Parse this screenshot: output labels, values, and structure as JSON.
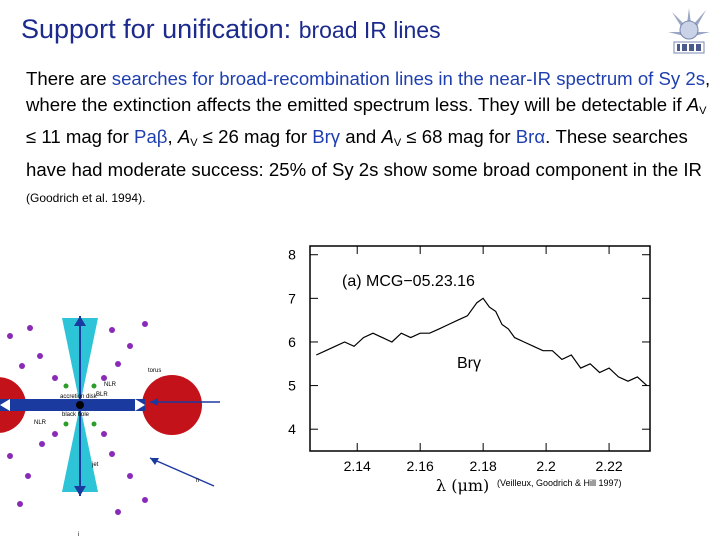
{
  "slide": {
    "title_main": "Support for unification:",
    "title_sub": "broad IR lines"
  },
  "body": {
    "p1": "There are ",
    "p2": "searches for broad-recombination lines in the near-IR spectrum of Sy 2s",
    "p3": ", where the extinction affects the emitted spectrum less. They will be detectable if ",
    "av": "A",
    "v": "V",
    "p4": " ≤ 11 mag for ",
    "pab": "Paβ",
    "p5": ", ",
    "p6": " ≤ 26 mag for ",
    "brg": "Brγ",
    "p7": " and ",
    "p8": " ≤ 68 mag for ",
    "bra": "Brα",
    "p9": ".  These searches have had moderate success: 25% of Sy 2s show some broad component in the IR ",
    "ref": "(Goodrich et al. 1994)."
  },
  "diagram": {
    "labels": {
      "nlr_top": "NLR",
      "blr": "BLR",
      "disk": "accretion disk",
      "bh": "black hole",
      "nlr_bottom": "NLR",
      "jet": "jet",
      "torus": "torus",
      "marker": "n",
      "bottom": "i"
    },
    "colors": {
      "torus": "#c4121a",
      "cone": "#2ec4d8",
      "dots": "#8a2bb8",
      "dots_green": "#2a9d2a",
      "axis": "#1a3aa0"
    }
  },
  "chart_data": {
    "type": "line",
    "title": "",
    "panel_label": "(a) MCG−05.23.16",
    "annotation": "Brγ",
    "xlabel": "λ (μm)",
    "ylabel": "",
    "xlim": [
      2.125,
      2.233
    ],
    "ylim": [
      3.5,
      8.2
    ],
    "xticks": [
      "2.14",
      "2.16",
      "2.18",
      "2.2",
      "2.22"
    ],
    "xtick_values": [
      2.14,
      2.16,
      2.18,
      2.2,
      2.22
    ],
    "yticks": [
      "4",
      "5",
      "6",
      "7",
      "8"
    ],
    "ytick_values": [
      4,
      5,
      6,
      7,
      8
    ],
    "grid": false,
    "series": [
      {
        "x": [
          2.127,
          2.13,
          2.133,
          2.136,
          2.139,
          2.142,
          2.145,
          2.148,
          2.151,
          2.154,
          2.157,
          2.16,
          2.163,
          2.166,
          2.169,
          2.172,
          2.175,
          2.178,
          2.18,
          2.182,
          2.184,
          2.186,
          2.188,
          2.19,
          2.193,
          2.196,
          2.199,
          2.202,
          2.205,
          2.208,
          2.211,
          2.214,
          2.217,
          2.22,
          2.223,
          2.226,
          2.229,
          2.232
        ],
        "y": [
          5.7,
          5.8,
          5.9,
          6.0,
          5.9,
          6.1,
          6.2,
          6.1,
          6.0,
          6.2,
          6.1,
          6.2,
          6.2,
          6.3,
          6.4,
          6.5,
          6.6,
          6.9,
          7.0,
          6.8,
          6.7,
          6.4,
          6.3,
          6.1,
          6.0,
          5.9,
          5.8,
          5.8,
          5.6,
          5.7,
          5.4,
          5.5,
          5.3,
          5.4,
          5.2,
          5.1,
          5.2,
          5.0
        ]
      }
    ],
    "source": "(Veilleux, Goodrich & Hill 1997)"
  }
}
